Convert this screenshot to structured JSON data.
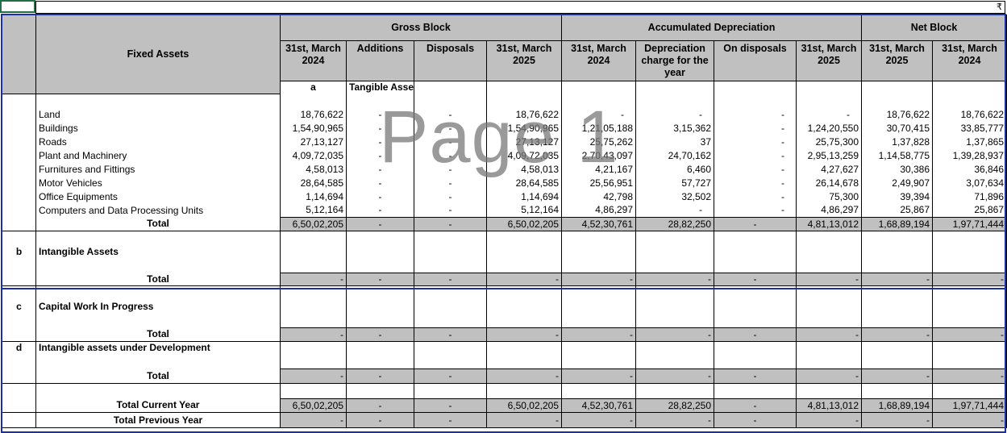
{
  "top_bar": {
    "currency_symbol": "₹"
  },
  "watermark": "Page 1",
  "header": {
    "fixed_assets": "Fixed Assets",
    "gross_block": "Gross Block",
    "accumulated_depreciation": "Accumulated Depreciation",
    "net_block": "Net Block",
    "columns": [
      "31st, March 2024",
      "Additions",
      "Disposals",
      "31st, March 2025",
      "31st, March 2024",
      "Depreciation charge for the year",
      "On disposals",
      "31st, March 2025",
      "31st, March 2025",
      "31st, March 2024"
    ]
  },
  "sections": {
    "a": {
      "letter": "a",
      "title": "Tangible Assets"
    },
    "b": {
      "letter": "b",
      "title": "Intangible Assets"
    },
    "c": {
      "letter": "c",
      "title": "Capital Work In Progress"
    },
    "d": {
      "letter": "d",
      "title": "Intangible assets under Development"
    }
  },
  "tangible_rows": [
    {
      "name": "Land",
      "v": [
        "18,76,622",
        "-",
        "-",
        "18,76,622",
        "-",
        "-",
        "-",
        "-",
        "18,76,622",
        "18,76,622"
      ]
    },
    {
      "name": "Buildings",
      "v": [
        "1,54,90,965",
        "-",
        "-",
        "1,54,90,965",
        "1,21,05,188",
        "3,15,362",
        "-",
        "1,24,20,550",
        "30,70,415",
        "33,85,777"
      ]
    },
    {
      "name": "Roads",
      "v": [
        "27,13,127",
        "-",
        "-",
        "27,13,127",
        "25,75,262",
        "37",
        "-",
        "25,75,300",
        "1,37,828",
        "1,37,865"
      ]
    },
    {
      "name": "Plant and Machinery",
      "v": [
        "4,09,72,035",
        "-",
        "-",
        "4,09,72,035",
        "2,70,43,097",
        "24,70,162",
        "-",
        "2,95,13,259",
        "1,14,58,775",
        "1,39,28,937"
      ]
    },
    {
      "name": "Furnitures and Fittings",
      "v": [
        "4,58,013",
        "-",
        "-",
        "4,58,013",
        "4,21,167",
        "6,460",
        "-",
        "4,27,627",
        "30,386",
        "36,846"
      ]
    },
    {
      "name": "Motor Vehicles",
      "v": [
        "28,64,585",
        "-",
        "-",
        "28,64,585",
        "25,56,951",
        "57,727",
        "-",
        "26,14,678",
        "2,49,907",
        "3,07,634"
      ]
    },
    {
      "name": "Office Equipments",
      "v": [
        "1,14,694",
        "-",
        "-",
        "1,14,694",
        "42,798",
        "32,502",
        "-",
        "75,300",
        "39,394",
        "71,896"
      ]
    },
    {
      "name": "Computers and Data Processing Units",
      "v": [
        "5,12,164",
        "-",
        "-",
        "5,12,164",
        "4,86,297",
        "-",
        "-",
        "4,86,297",
        "25,867",
        "25,867"
      ]
    }
  ],
  "totals": {
    "label": "Total",
    "tangible": [
      "6,50,02,205",
      "-",
      "-",
      "6,50,02,205",
      "4,52,30,761",
      "28,82,250",
      "-",
      "4,81,13,012",
      "1,68,89,194",
      "1,97,71,444"
    ],
    "intangible": [
      "-",
      "-",
      "-",
      "-",
      "-",
      "-",
      "-",
      "-",
      "-",
      "-"
    ],
    "cwip": [
      "-",
      "-",
      "-",
      "-",
      "-",
      "-",
      "-",
      "-",
      "-",
      "-"
    ],
    "iaud": [
      "-",
      "-",
      "-",
      "-",
      "-",
      "-",
      "-",
      "-",
      "-",
      "-"
    ]
  },
  "grand": {
    "current_label": "Total Current Year",
    "current": [
      "6,50,02,205",
      "-",
      "-",
      "6,50,02,205",
      "4,52,30,761",
      "28,82,250",
      "-",
      "4,81,13,012",
      "1,68,89,194",
      "1,97,71,444"
    ],
    "previous_label": "Total Previous Year",
    "previous": [
      "-",
      "-",
      "-",
      "-",
      "-",
      "-",
      "-",
      "-",
      "-",
      "-"
    ]
  }
}
